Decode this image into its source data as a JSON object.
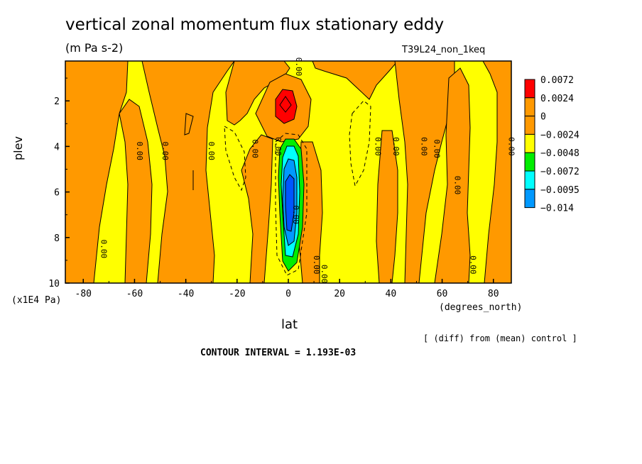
{
  "title": "vertical zonal momentum flux stationary eddy",
  "units": "(m Pa s-2)",
  "run_id": "T39L24_non_1keq",
  "y_factor": "(x1E4 Pa)",
  "x_units": "(degrees_north)",
  "xlabel": "lat",
  "ylabel": "plev",
  "note": "[ (diff) from (mean) control ]",
  "contour_interval": "CONTOUR INTERVAL = 1.193E-03",
  "chart_data": {
    "type": "heatmap",
    "x_ticks": [
      "-80",
      "-60",
      "-40",
      "-20",
      "0",
      "20",
      "40",
      "60",
      "80"
    ],
    "x_tick_values": [
      -80,
      -60,
      -40,
      -20,
      0,
      20,
      40,
      60,
      80
    ],
    "y_ticks": [
      "2",
      "4",
      "6",
      "8",
      "10"
    ],
    "y_tick_values": [
      2,
      4,
      6,
      8,
      10
    ],
    "xlim": [
      -87,
      87
    ],
    "ylim": [
      0.25,
      10
    ],
    "y_reversed": true,
    "contour_labels": [
      {
        "text": "0.00",
        "x": 3,
        "y": 0.5
      },
      {
        "text": "0.00",
        "x": -59,
        "y": 4.2
      },
      {
        "text": "0.00",
        "x": -49,
        "y": 4.2
      },
      {
        "text": "0.00",
        "x": -31,
        "y": 4.2
      },
      {
        "text": "0.00",
        "x": -14,
        "y": 4.1
      },
      {
        "text": "0.00",
        "x": -5,
        "y": 4.0
      },
      {
        "text": "0.00",
        "x": 34,
        "y": 4.0
      },
      {
        "text": "0.00",
        "x": 41,
        "y": 4.0
      },
      {
        "text": "0.00",
        "x": 52,
        "y": 4.0
      },
      {
        "text": "0.00",
        "x": 57,
        "y": 4.1
      },
      {
        "text": "0.00",
        "x": 65,
        "y": 5.7
      },
      {
        "text": "0.00",
        "x": 86,
        "y": 4.0
      },
      {
        "text": "0.00",
        "x": -73,
        "y": 8.5
      },
      {
        "text": "0.00",
        "x": 10,
        "y": 9.2
      },
      {
        "text": "0.00",
        "x": 13,
        "y": 9.6
      },
      {
        "text": "0.00",
        "x": 71,
        "y": 9.2
      },
      {
        "text": "0.00",
        "x": 2,
        "y": 7.0
      }
    ],
    "legend": [
      {
        "label": "0.0072",
        "color": "#ff0000"
      },
      {
        "label": "0.0024",
        "color": "#ff9900"
      },
      {
        "label": "0",
        "color": "#ff9900"
      },
      {
        "label": "−0.0024",
        "color": "#ffff00"
      },
      {
        "label": "−0.0048",
        "color": "#00ee00"
      },
      {
        "label": "−0.0072",
        "color": "#00ffff"
      },
      {
        "label": "−0.0095",
        "color": "#0099ff"
      },
      {
        "label": "−0.014",
        "color": "#0055ff"
      }
    ],
    "colors": {
      "positive": "#ff9900",
      "near_zero_negative": "#ffff00",
      "max": "#ff0000"
    }
  }
}
